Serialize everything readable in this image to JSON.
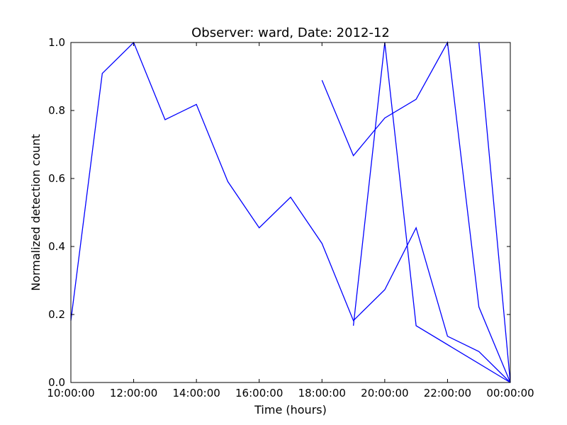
{
  "chart_data": {
    "type": "line",
    "title": "Observer: ward, Date: 2012-12",
    "xlabel": "Time (hours)",
    "ylabel": "Normalized detection count",
    "xlim": [
      10,
      24
    ],
    "ylim": [
      0.0,
      1.0
    ],
    "x_ticks": [
      {
        "value": 10,
        "label": "10:00:00"
      },
      {
        "value": 12,
        "label": "12:00:00"
      },
      {
        "value": 14,
        "label": "14:00:00"
      },
      {
        "value": 16,
        "label": "16:00:00"
      },
      {
        "value": 18,
        "label": "18:00:00"
      },
      {
        "value": 20,
        "label": "20:00:00"
      },
      {
        "value": 22,
        "label": "22:00:00"
      },
      {
        "value": 24,
        "label": "00:00:00"
      }
    ],
    "y_ticks": [
      {
        "value": 0.0,
        "label": "0.0"
      },
      {
        "value": 0.2,
        "label": "0.2"
      },
      {
        "value": 0.4,
        "label": "0.4"
      },
      {
        "value": 0.6,
        "label": "0.6"
      },
      {
        "value": 0.8,
        "label": "0.8"
      },
      {
        "value": 1.0,
        "label": "1.0"
      }
    ],
    "grid": false,
    "line_color": "#0000ff",
    "series": [
      {
        "x": [
          10,
          11,
          12,
          13,
          14,
          15,
          16,
          17,
          18,
          19,
          20,
          21,
          22,
          23,
          24
        ],
        "y": [
          0.182,
          0.909,
          1.0,
          0.773,
          0.818,
          0.591,
          0.455,
          0.545,
          0.409,
          0.182,
          0.273,
          0.455,
          0.136,
          0.091,
          0.0
        ]
      },
      {
        "x": [
          18,
          19,
          20,
          21,
          22,
          23,
          24
        ],
        "y": [
          0.889,
          0.667,
          0.778,
          0.833,
          1.0,
          0.222,
          0.0
        ]
      },
      {
        "x": [
          19,
          20,
          21,
          24
        ],
        "y": [
          0.167,
          1.0,
          0.167,
          0.0
        ]
      },
      {
        "x": [
          23,
          24
        ],
        "y": [
          1.0,
          0.0
        ]
      }
    ]
  }
}
